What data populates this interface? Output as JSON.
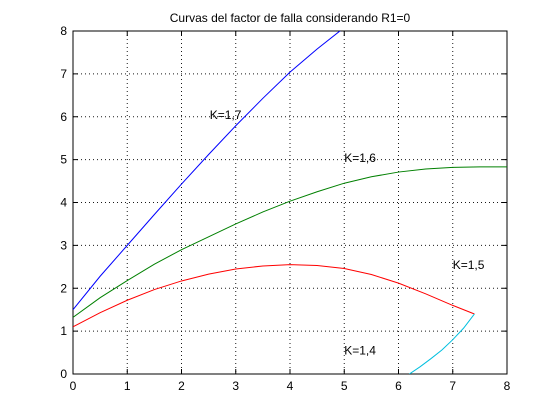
{
  "chart_data": {
    "type": "line",
    "title": "Curvas del factor de falla considerando R1=0",
    "xlabel": "",
    "ylabel": "",
    "xlim": [
      0,
      8
    ],
    "ylim": [
      0,
      8
    ],
    "xticks": [
      "0",
      "1",
      "2",
      "3",
      "4",
      "5",
      "6",
      "7",
      "8"
    ],
    "yticks": [
      "0",
      "1",
      "2",
      "3",
      "4",
      "5",
      "6",
      "7",
      "8"
    ],
    "grid": true,
    "series": [
      {
        "name": "K=1,7",
        "color": "#0000ff",
        "x": [
          0,
          0.5,
          1,
          1.5,
          2,
          2.5,
          3,
          3.5,
          4,
          4.5,
          5,
          5.3
        ],
        "y": [
          1.5,
          2.28,
          3.0,
          3.72,
          4.43,
          5.12,
          5.79,
          6.43,
          7.04,
          7.58,
          8.08,
          8.35
        ]
      },
      {
        "name": "K=1,6",
        "color": "#008000",
        "x": [
          0,
          0.5,
          1,
          1.5,
          2,
          2.5,
          3,
          3.5,
          4,
          4.5,
          5,
          5.5,
          6,
          6.5,
          7,
          7.5,
          8
        ],
        "y": [
          1.32,
          1.78,
          2.18,
          2.56,
          2.9,
          3.2,
          3.5,
          3.78,
          4.03,
          4.25,
          4.45,
          4.6,
          4.71,
          4.78,
          4.82,
          4.83,
          4.83
        ]
      },
      {
        "name": "K=1,5",
        "color": "#ff0000",
        "x": [
          0,
          0.5,
          1,
          1.5,
          2,
          2.5,
          3,
          3.5,
          4,
          4.5,
          5,
          5.5,
          6,
          6.5,
          7,
          7.4
        ],
        "y": [
          1.1,
          1.43,
          1.72,
          1.97,
          2.17,
          2.33,
          2.45,
          2.52,
          2.55,
          2.53,
          2.46,
          2.32,
          2.12,
          1.87,
          1.6,
          1.4
        ]
      },
      {
        "name": "K=1,4",
        "color": "#00bfdf",
        "x": [
          6.2,
          6.4,
          6.6,
          6.8,
          7.0,
          7.2,
          7.4
        ],
        "y": [
          0.0,
          0.17,
          0.36,
          0.56,
          0.8,
          1.07,
          1.4
        ]
      }
    ],
    "annotations": [
      {
        "text": "K=1,7",
        "x": 2.52,
        "y": 5.95
      },
      {
        "text": "K=1,6",
        "x": 5.0,
        "y": 4.95
      },
      {
        "text": "K=1,5",
        "x": 7.0,
        "y": 2.45
      },
      {
        "text": "K=1,4",
        "x": 5.0,
        "y": 0.45
      }
    ]
  }
}
